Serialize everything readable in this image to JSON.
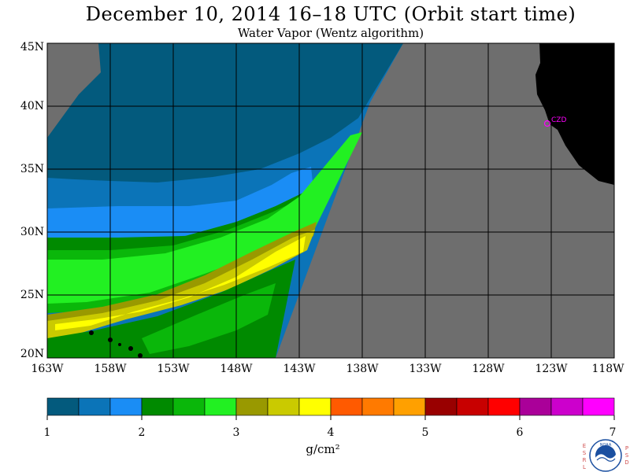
{
  "title": "December 10, 2014  16–18 UTC  (Orbit start time)",
  "subtitle": "Water Vapor (Wentz algorithm)",
  "map": {
    "lat_labels": [
      "45N",
      "40N",
      "35N",
      "30N",
      "25N",
      "20N"
    ],
    "lon_labels": [
      "163W",
      "158W",
      "153W",
      "148W",
      "143W",
      "138W",
      "133W",
      "128W",
      "123W",
      "118W"
    ],
    "lat_range": [
      20,
      45
    ],
    "lon_range": [
      -163,
      -118
    ],
    "no_data_color": "#6e6e6e",
    "land_color": "#000000",
    "station_label": "CZD",
    "station_color": "#ff00ff"
  },
  "colorbar": {
    "tick_labels": [
      "1",
      "2",
      "3",
      "4",
      "5",
      "6",
      "7"
    ],
    "units": "g/cm²",
    "colors": [
      "#035a7d",
      "#0b74b8",
      "#1a8df5",
      "#008a00",
      "#0ab70a",
      "#22f022",
      "#999900",
      "#caca00",
      "#ffff00",
      "#ff5a00",
      "#ff7a00",
      "#ffa000",
      "#990000",
      "#c80000",
      "#ff0000",
      "#aa0099",
      "#cc00cc",
      "#ff00ff"
    ]
  },
  "branding": {
    "logo_text": "NOAA",
    "left_letters": [
      "E",
      "S",
      "R",
      "L"
    ],
    "right_letters": [
      "P",
      "S",
      "D"
    ]
  }
}
